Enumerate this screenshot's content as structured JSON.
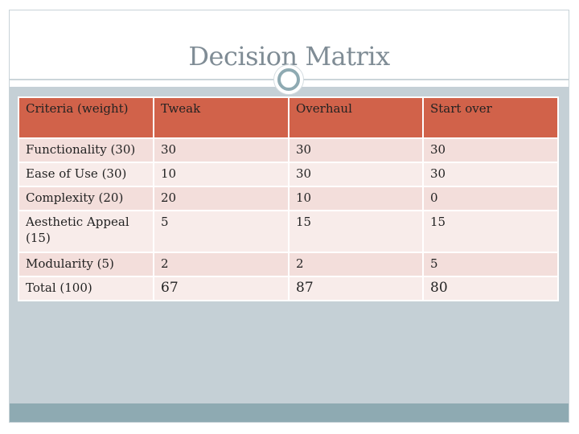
{
  "slide": {
    "title": "Decision Matrix"
  },
  "table": {
    "headers": [
      "Criteria (weight)",
      "Tweak",
      "Overhaul",
      "Start over"
    ],
    "rows": [
      [
        "Functionality (30)",
        "30",
        "30",
        "30"
      ],
      [
        "Ease of Use (30)",
        "10",
        "30",
        "30"
      ],
      [
        "Complexity (20)",
        "20",
        "10",
        "0"
      ],
      [
        "Aesthetic Appeal (15)",
        "5",
        "15",
        "15"
      ],
      [
        "Modularity (5)",
        "2",
        "2",
        "5"
      ],
      [
        "Total (100)",
        "67",
        "87",
        "80"
      ]
    ]
  },
  "colors": {
    "header": "#d1624a",
    "row_dark": "#f3dedb",
    "row_light": "#f8ecea",
    "content_bg": "#c5d0d6",
    "footer_band": "#8eaab2",
    "title": "#7f8c95"
  }
}
